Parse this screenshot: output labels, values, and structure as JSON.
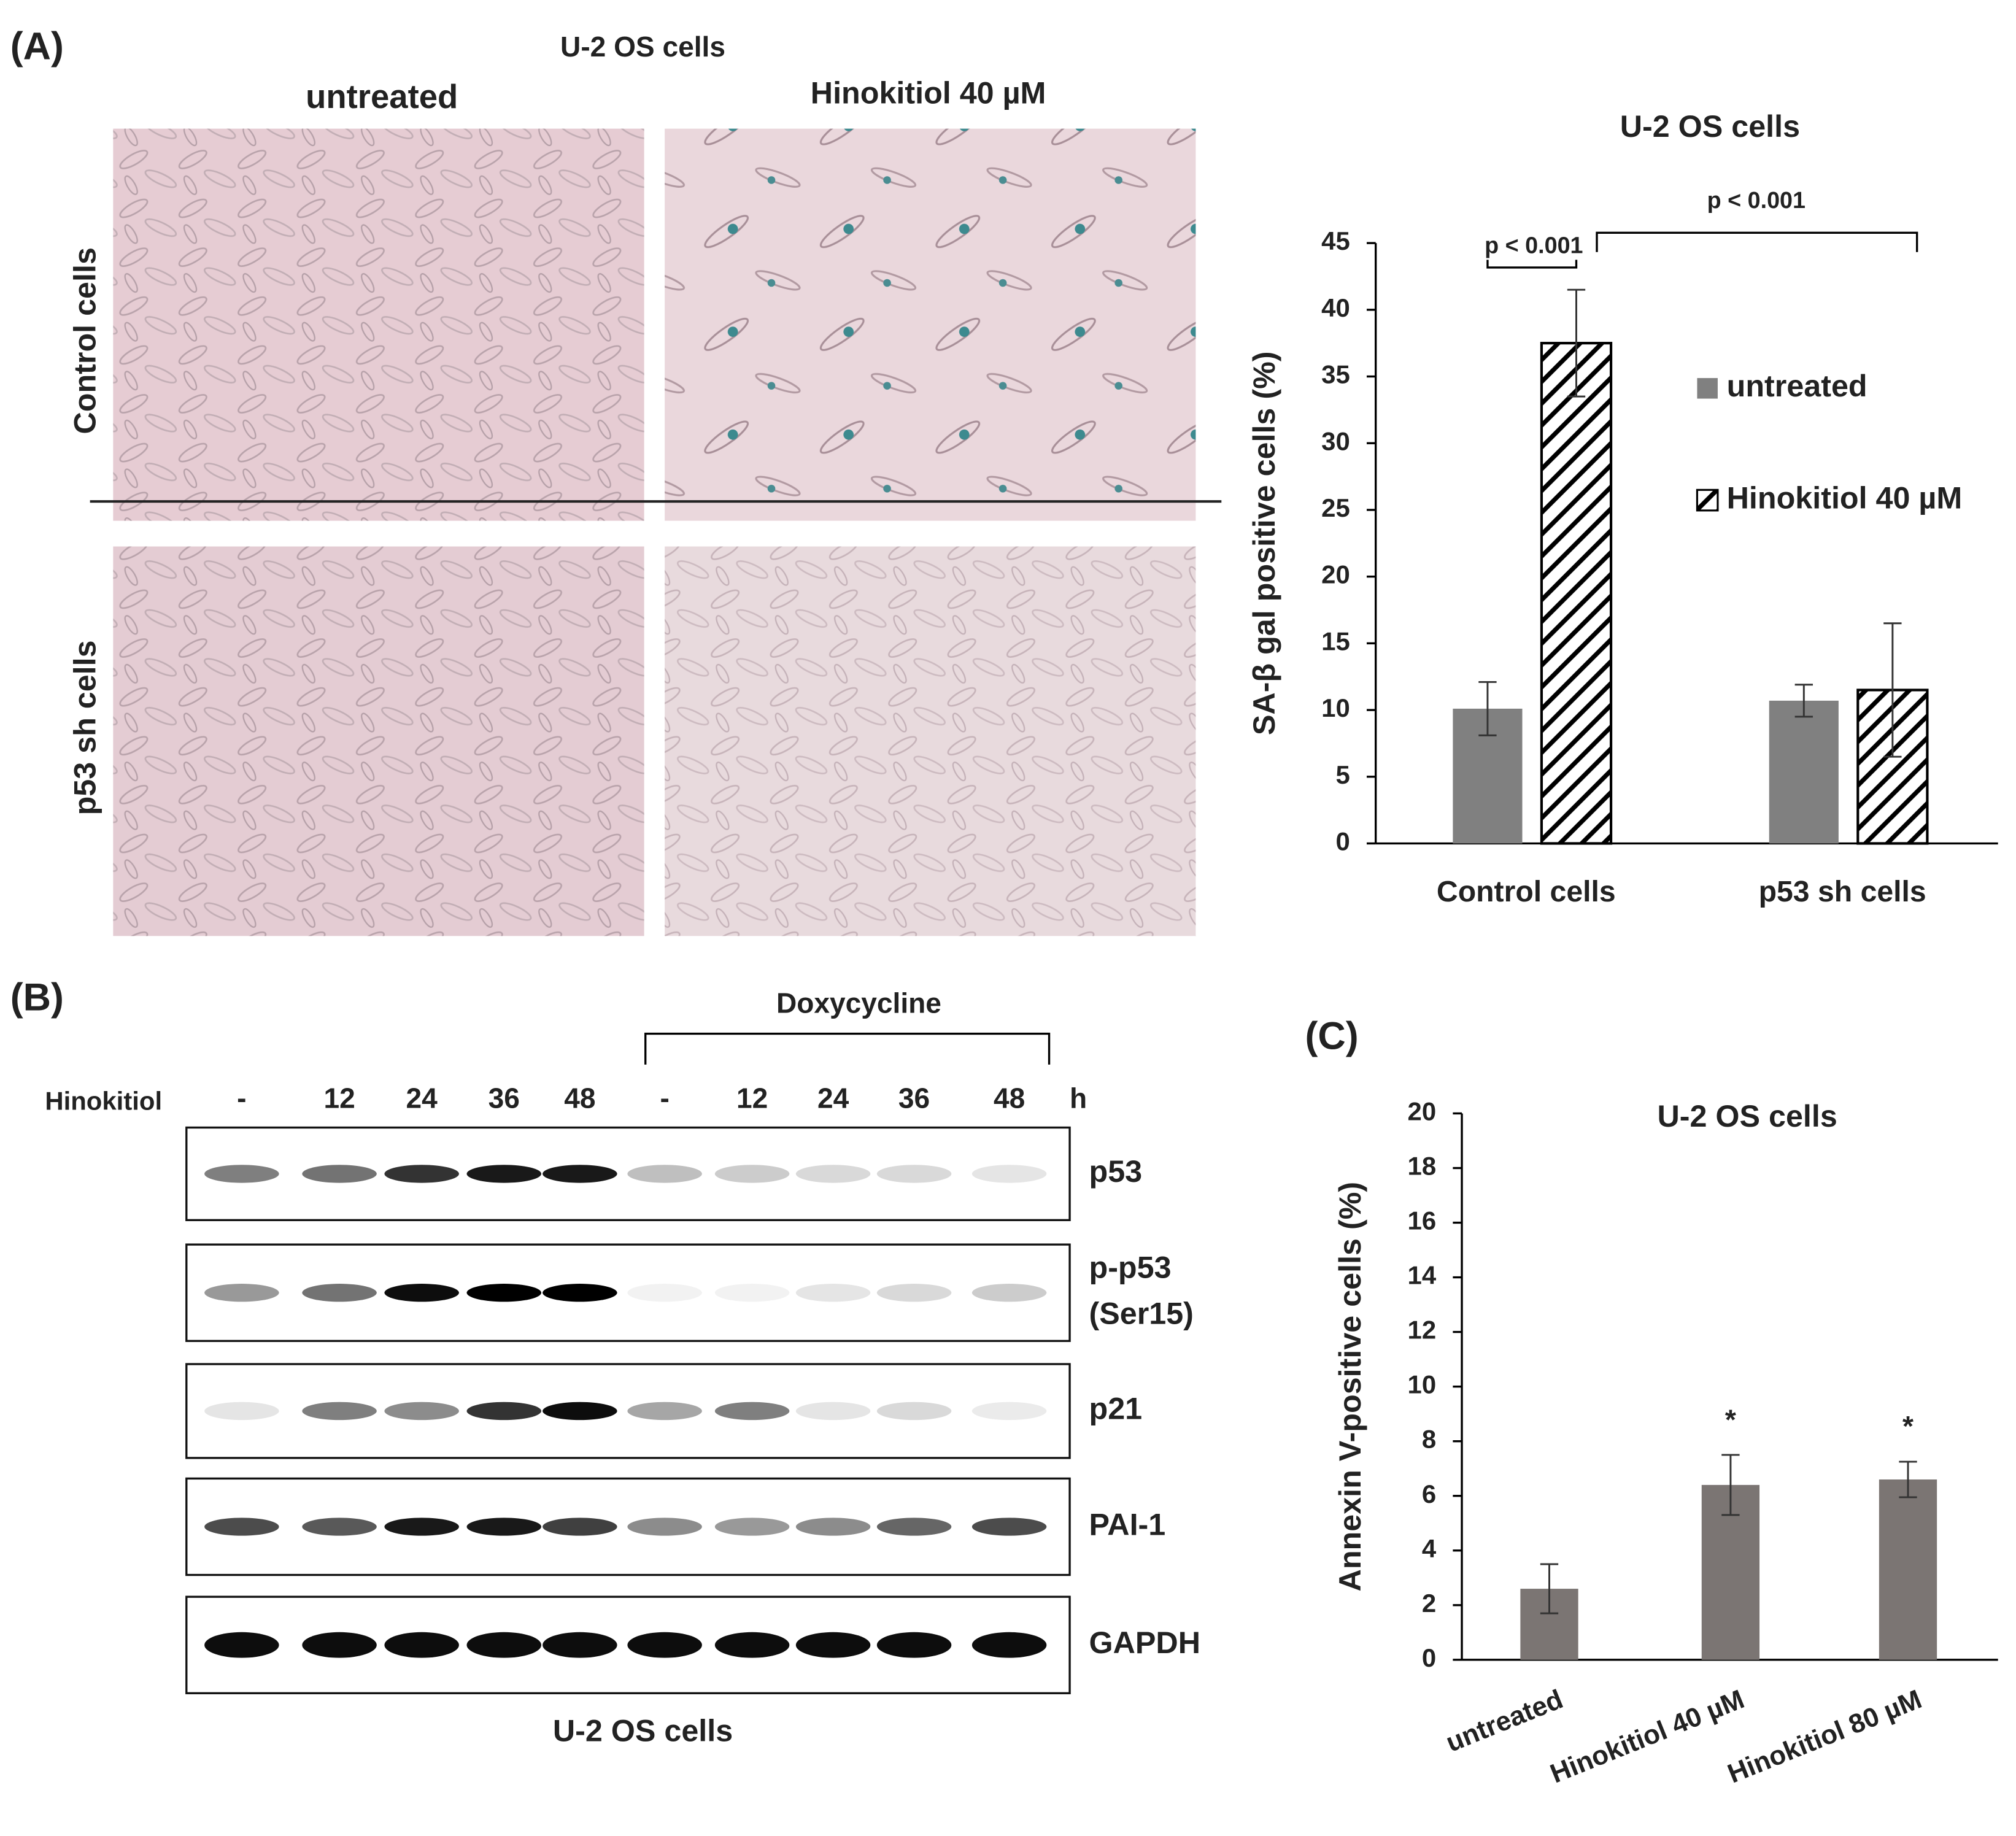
{
  "panels": {
    "a": "(A)",
    "b": "(B)",
    "c": "(C)"
  },
  "panel_a": {
    "title": "U-2 OS cells",
    "columns": [
      "untreated",
      "Hinokitiol 40 µM"
    ],
    "rows": [
      "Control cells",
      "p53 sh cells"
    ]
  },
  "panel_b": {
    "treatment_label": "Hinokitiol",
    "group_label": "Doxycycline",
    "lanes": [
      "-",
      "12",
      "24",
      "36",
      "48",
      "-",
      "12",
      "24",
      "36",
      "48"
    ],
    "unit": "h",
    "blots": [
      [
        "p53"
      ],
      [
        "p-p53",
        "(Ser15)"
      ],
      [
        "p21"
      ],
      [
        "PAI-1"
      ],
      [
        "GAPDH"
      ]
    ],
    "caption": "U-2 OS cells"
  },
  "chart_data": [
    {
      "type": "bar",
      "title": "U-2 OS cells",
      "y_label": "SA-β gal positive cells (%)",
      "categories": [
        "Control cells",
        "p53 sh cells"
      ],
      "series": [
        {
          "name": "untreated",
          "color": "#808080",
          "hatch": false,
          "values": [
            10.1,
            10.7
          ],
          "errors": [
            2,
            1.2
          ]
        },
        {
          "name": "Hinokitiol 40 µM",
          "color": "#000000",
          "hatch": true,
          "values": [
            37.5,
            11.5
          ],
          "errors": [
            4,
            5
          ]
        }
      ],
      "ylim": [
        0,
        45
      ],
      "yticks": [
        0,
        5,
        10,
        15,
        20,
        25,
        30,
        35,
        40,
        45
      ],
      "grid": false,
      "legend": "right",
      "annotations": [
        "p < 0.001",
        "p < 0.001"
      ]
    },
    {
      "type": "bar",
      "title": "U-2 OS cells",
      "y_label": "Annexin V-positive cells (%)",
      "categories": [
        "untreated",
        "Hinokitiol 40 µM",
        "Hinokitiol 80 µM"
      ],
      "series": [
        {
          "color": "#7b7573",
          "hatch": false,
          "values": [
            2.6,
            6.4,
            6.6
          ],
          "errors": [
            0.9,
            1.1,
            0.65
          ]
        }
      ],
      "ylim": [
        0,
        20
      ],
      "yticks": [
        0,
        2,
        4,
        6,
        8,
        10,
        12,
        14,
        16,
        18,
        20
      ],
      "grid": false,
      "annotations": [
        "*",
        "*"
      ]
    }
  ]
}
